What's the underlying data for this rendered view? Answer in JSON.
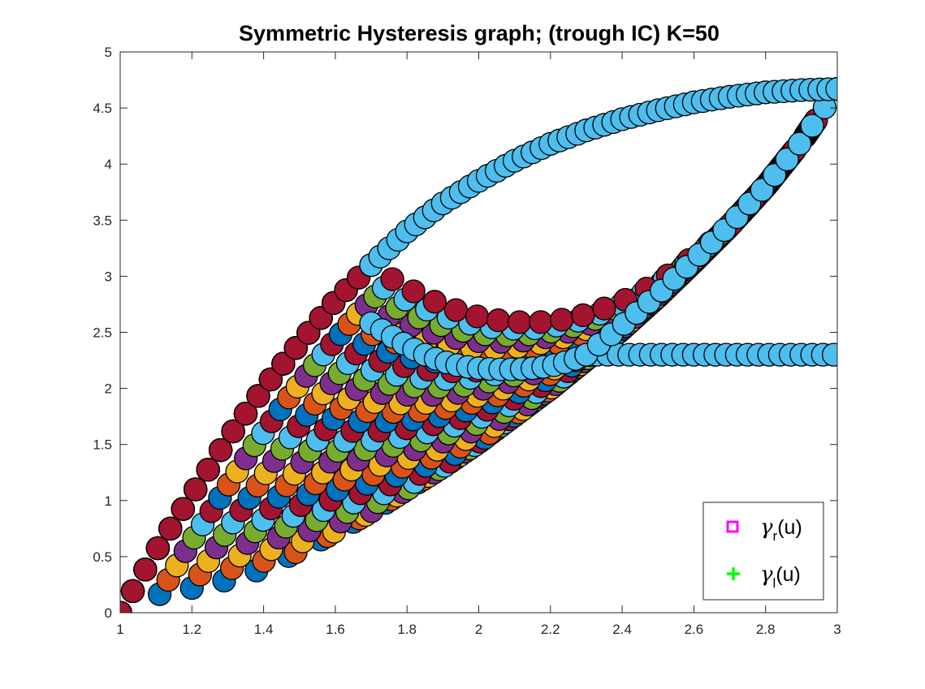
{
  "title": "Symmetric Hysteresis graph; (trough IC) K=50",
  "chart_data": {
    "type": "scatter",
    "title": "Symmetric Hysteresis graph; (trough IC) K=50",
    "xlabel": "",
    "ylabel": "",
    "xlim": [
      1,
      3
    ],
    "ylim": [
      0,
      5
    ],
    "xticks": [
      1,
      1.2,
      1.4,
      1.6,
      1.8,
      2,
      2.2,
      2.4,
      2.6,
      2.8,
      3
    ],
    "yticks": [
      0,
      0.5,
      1,
      1.5,
      2,
      2.5,
      3,
      3.5,
      4,
      4.5,
      5
    ],
    "xtick_labels": [
      "1",
      "1.2",
      "1.4",
      "1.6",
      "1.8",
      "2",
      "2.2",
      "2.4",
      "2.6",
      "2.8",
      "3"
    ],
    "ytick_labels": [
      "0",
      "0.5",
      "1",
      "1.5",
      "2",
      "2.5",
      "3",
      "3.5",
      "4",
      "4.5",
      "5"
    ],
    "grid": false,
    "legend_position": "bottom-right",
    "legend": [
      {
        "greek": "γ",
        "sub": "r",
        "suffix": "(u)",
        "marker": "square",
        "color": "#ff00ff"
      },
      {
        "greek": "γ",
        "sub": "l",
        "suffix": "(u)",
        "marker": "plus",
        "color": "#00ff00"
      }
    ],
    "marker_colors": [
      "#0072bd",
      "#d95319",
      "#edb120",
      "#7e2f8e",
      "#77ac30",
      "#4dbeee",
      "#a2142f"
    ],
    "outer_upper_branch": {
      "x": [
        1.0,
        1.1,
        1.2,
        1.3,
        1.4,
        1.5,
        1.6,
        1.7,
        1.8,
        1.9,
        2.0,
        2.1,
        2.2,
        2.3,
        2.4,
        2.5,
        2.6,
        2.7,
        2.8,
        2.9,
        3.0
      ],
      "y": [
        0.0,
        0.55,
        1.05,
        1.55,
        2.0,
        2.4,
        2.78,
        3.1,
        3.4,
        3.65,
        3.85,
        4.03,
        4.18,
        4.3,
        4.4,
        4.48,
        4.55,
        4.6,
        4.64,
        4.66,
        4.67
      ]
    },
    "outer_lower_branch": {
      "x": [
        1.0,
        1.1,
        1.2,
        1.3,
        1.4,
        1.5,
        1.6,
        1.7,
        1.8,
        1.9,
        2.0,
        2.1,
        2.2,
        2.3,
        2.4,
        2.5,
        2.6,
        2.7,
        2.8,
        2.9,
        3.0
      ],
      "y": [
        0.0,
        0.08,
        0.17,
        0.28,
        0.4,
        0.55,
        0.72,
        0.9,
        1.1,
        1.3,
        1.52,
        1.76,
        2.0,
        2.26,
        2.53,
        2.82,
        3.13,
        3.45,
        3.8,
        4.2,
        4.67
      ]
    },
    "final_inner_descent": {
      "x": [
        1.7,
        1.75,
        1.8,
        1.85,
        1.9,
        1.95,
        2.0,
        2.05,
        2.1,
        2.15,
        2.2,
        2.25,
        2.3
      ],
      "y": [
        2.58,
        2.48,
        2.38,
        2.3,
        2.24,
        2.2,
        2.18,
        2.17,
        2.17,
        2.18,
        2.2,
        2.24,
        2.3
      ]
    }
  }
}
